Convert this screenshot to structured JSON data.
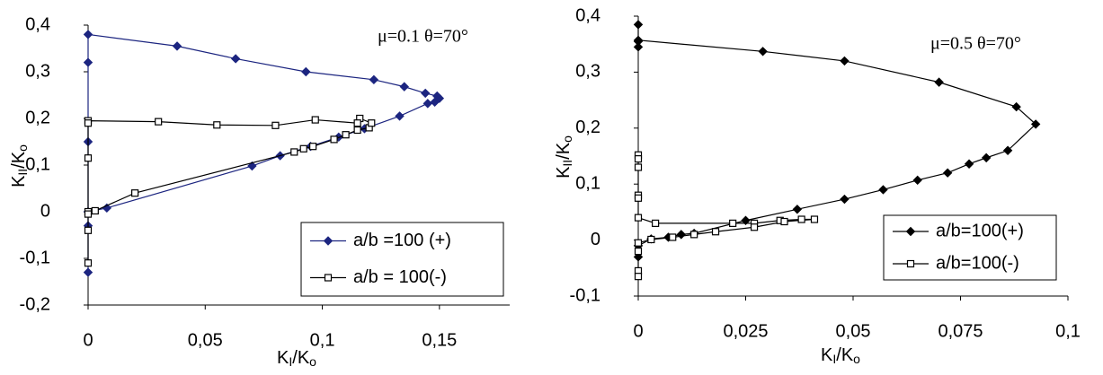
{
  "chart_data": [
    {
      "type": "line",
      "annotation": "μ=0.1 θ=70°",
      "x_label": [
        "K",
        "I",
        "/K",
        "o"
      ],
      "y_label": [
        "K",
        "II",
        "/K",
        "o"
      ],
      "xlim": [
        0,
        0.18
      ],
      "ylim": [
        -0.2,
        0.4
      ],
      "xticks": [
        0,
        {
          "value": 0.05,
          "label": "0,05"
        },
        {
          "value": 0.1,
          "label": "0,1"
        },
        {
          "value": 0.15,
          "label": "0,15"
        }
      ],
      "yticks": [
        {
          "value": -0.2,
          "label": "-0,2"
        },
        {
          "value": -0.1,
          "label": "-0,1"
        },
        0,
        {
          "value": 0.1,
          "label": "0,1"
        },
        {
          "value": 0.2,
          "label": "0,2"
        },
        {
          "value": 0.3,
          "label": "0,3"
        },
        {
          "value": 0.4,
          "label": "0,4"
        }
      ],
      "legend": "lower right",
      "series": [
        {
          "name": "a/b =100 (+)",
          "color": "#1c2580",
          "marker": "diamond",
          "x": [
            0,
            0.008,
            0.07,
            0.082,
            0.095,
            0.107,
            0.118,
            0.133,
            0.145,
            0.148,
            0.15,
            0.149,
            0.144,
            0.135,
            0.122,
            0.093,
            0.063,
            0.038,
            0,
            0,
            0,
            0,
            0
          ],
          "values": [
            0,
            0.008,
            0.098,
            0.12,
            0.14,
            0.16,
            0.178,
            0.205,
            0.232,
            0.235,
            0.243,
            0.248,
            0.254,
            0.268,
            0.283,
            0.3,
            0.328,
            0.355,
            0.38,
            0.32,
            0.15,
            -0.03,
            -0.13
          ]
        },
        {
          "name": "a/b = 100(-)",
          "color": "#000000",
          "marker": "square",
          "x": [
            0,
            0,
            0,
            0.003,
            0.02,
            0.088,
            0.092,
            0.096,
            0.105,
            0.11,
            0.115,
            0.12,
            0.121,
            0.116,
            0.115,
            0.097,
            0.08,
            0.055,
            0.03,
            0,
            0,
            0,
            0
          ],
          "values": [
            -0.11,
            -0.04,
            0,
            0.002,
            0.04,
            0.128,
            0.135,
            0.14,
            0.155,
            0.165,
            0.175,
            0.18,
            0.19,
            0.2,
            0.19,
            0.197,
            0.185,
            0.186,
            0.193,
            0.195,
            0.19,
            0.115,
            -0.005
          ]
        }
      ]
    },
    {
      "type": "line",
      "annotation": "μ=0.5 θ=70°",
      "x_label": [
        "K",
        "I",
        "/K",
        "o"
      ],
      "y_label": [
        "K",
        "II",
        "/K",
        "o"
      ],
      "xlim": [
        0,
        0.1
      ],
      "ylim": [
        -0.1,
        0.4
      ],
      "xticks": [
        0,
        {
          "value": 0.025,
          "label": "0,025"
        },
        {
          "value": 0.05,
          "label": "0,05"
        },
        {
          "value": 0.075,
          "label": "0,075"
        },
        {
          "value": 0.1,
          "label": "0,1"
        }
      ],
      "yticks": [
        {
          "value": -0.1,
          "label": "-0,1"
        },
        0,
        {
          "value": 0.1,
          "label": "0,1"
        },
        {
          "value": 0.2,
          "label": "0,2"
        },
        {
          "value": 0.3,
          "label": "0,3"
        },
        {
          "value": 0.4,
          "label": "0,4"
        }
      ],
      "legend": "lower right",
      "series": [
        {
          "name": "a/b=100(+)",
          "color": "#000000",
          "marker": "diamond",
          "x": [
            0,
            0,
            0,
            0,
            0.029,
            0.048,
            0.07,
            0.088,
            0.0925,
            0.086,
            0.081,
            0.077,
            0.072,
            0.065,
            0.057,
            0.048,
            0.037,
            0.025,
            0.013,
            0.01,
            0.007,
            0.003,
            0,
            0
          ],
          "values": [
            0.385,
            0.345,
            0.355,
            0.357,
            0.337,
            0.32,
            0.282,
            0.238,
            0.207,
            0.16,
            0.147,
            0.136,
            0.12,
            0.107,
            0.09,
            0.073,
            0.055,
            0.035,
            0.012,
            0.01,
            0.005,
            0.002,
            -0.01,
            -0.03
          ]
        },
        {
          "name": "a/b=100(-)",
          "color": "#000000",
          "marker": "square",
          "x": [
            0,
            0,
            0,
            0,
            0,
            0,
            0.004,
            0.022,
            0.027,
            0.033,
            0.038,
            0.041,
            0.034,
            0.027,
            0.018,
            0.013,
            0.008,
            0.003,
            0,
            0,
            0,
            0
          ],
          "values": [
            0.152,
            0.145,
            0.13,
            0.08,
            0.075,
            0.04,
            0.03,
            0.03,
            0.03,
            0.035,
            0.037,
            0.037,
            0.033,
            0.023,
            0.015,
            0.01,
            0.005,
            0.001,
            -0.005,
            -0.02,
            -0.055,
            -0.065
          ]
        }
      ]
    }
  ]
}
